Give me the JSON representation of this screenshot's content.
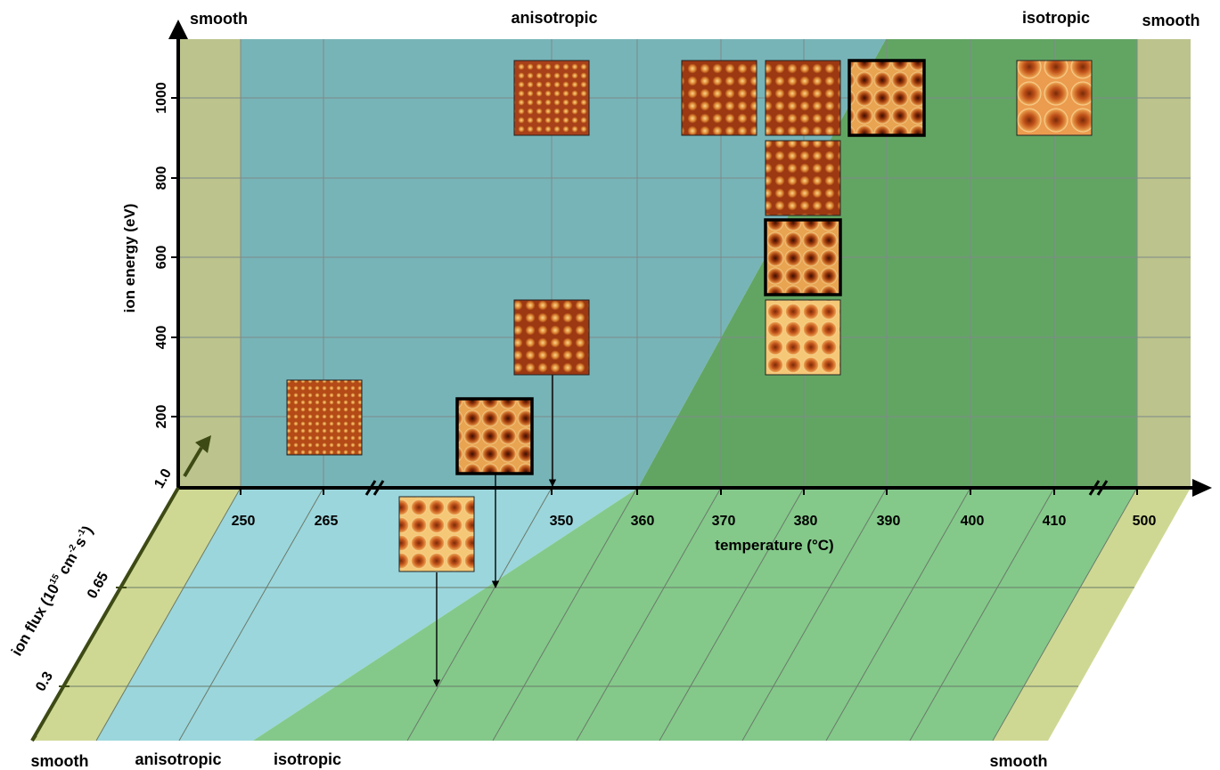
{
  "labels": {
    "top_left": "smooth",
    "top_center": "anisotropic",
    "top_right_isotropic": "isotropic",
    "top_right_smooth": "smooth",
    "bottom_smooth_left": "smooth",
    "bottom_anisotropic": "anisotropic",
    "bottom_isotropic": "isotropic",
    "bottom_smooth_right": "smooth"
  },
  "axes": {
    "y_title": "ion energy (eV)",
    "x_title": "temperature (°C)",
    "z_title_main": "ion flux (10",
    "z_title_exp1": "15",
    "z_title_mid": " cm",
    "z_title_exp2": "-2",
    "z_title_s": "s",
    "z_title_exp3": "-1",
    "z_title_close": ")",
    "x_ticks": [
      "250",
      "265",
      "350",
      "360",
      "370",
      "380",
      "390",
      "400",
      "410",
      "500"
    ],
    "y_ticks": [
      "200",
      "400",
      "600",
      "800",
      "1000"
    ],
    "z_ticks": [
      "1.0",
      "0.65",
      "0.3"
    ]
  },
  "colors": {
    "smooth_back": "#bcc38c",
    "anisotropic_back": "#77b4b8",
    "isotropic_back": "#62a563",
    "smooth_floor": "#cfd893",
    "anisotropic_floor": "#9bd6dc",
    "isotropic_floor": "#84c98a",
    "afm_dark": "#5a1a05",
    "afm_mid": "#c0521a",
    "afm_light": "#f7c56a"
  },
  "afm_images": [
    {
      "temperature": "265",
      "energy": "200",
      "flux": "1.0",
      "pattern": "fine-ripple",
      "highlight": false
    },
    {
      "temperature": "350",
      "energy": "1000",
      "flux": "1.0",
      "pattern": "fine-dots",
      "highlight": false
    },
    {
      "temperature": "350",
      "energy": "400",
      "flux": "1.0",
      "pattern": "ripple",
      "highlight": false
    },
    {
      "temperature": "370",
      "energy": "1000",
      "flux": "1.0",
      "pattern": "ripple",
      "highlight": false
    },
    {
      "temperature": "380",
      "energy": "1000",
      "flux": "1.0",
      "pattern": "ripple",
      "highlight": false
    },
    {
      "temperature": "380",
      "energy": "800",
      "flux": "1.0",
      "pattern": "ripple",
      "highlight": false
    },
    {
      "temperature": "380",
      "energy": "600",
      "flux": "1.0",
      "pattern": "dark-cells",
      "highlight": true
    },
    {
      "temperature": "380",
      "energy": "400",
      "flux": "1.0",
      "pattern": "cells",
      "highlight": false
    },
    {
      "temperature": "390",
      "energy": "1000",
      "flux": "1.0",
      "pattern": "dark-cells",
      "highlight": true
    },
    {
      "temperature": "410",
      "energy": "1000",
      "flux": "1.0",
      "pattern": "large-cells",
      "highlight": false
    },
    {
      "temperature": "350",
      "energy": "1000",
      "flux": "0.65",
      "pattern": "cells",
      "highlight": true
    },
    {
      "temperature": "350",
      "energy": "1000",
      "flux": "0.3",
      "pattern": "cells",
      "highlight": false
    }
  ]
}
